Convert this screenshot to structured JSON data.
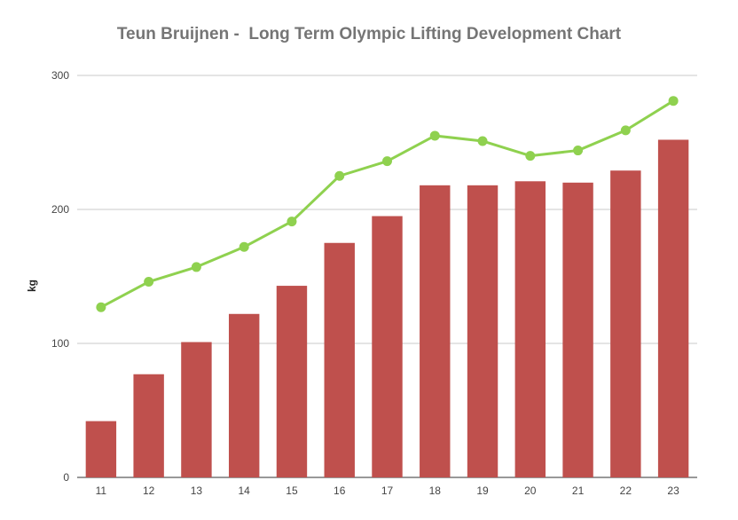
{
  "chart_data": {
    "type": "bar",
    "title": "Teun Bruijnen -  Long Term Olympic Lifting Development Chart",
    "xlabel": "",
    "ylabel": "kg",
    "ylim": [
      0,
      300
    ],
    "yticks": [
      0,
      100,
      200,
      300
    ],
    "grid": true,
    "legend": "none",
    "categories": [
      "11",
      "12",
      "13",
      "14",
      "15",
      "16",
      "17",
      "18",
      "19",
      "20",
      "21",
      "22",
      "23"
    ],
    "series": [
      {
        "type": "bar",
        "color": "#bf504d",
        "values": [
          42,
          77,
          101,
          122,
          143,
          175,
          195,
          218,
          218,
          221,
          220,
          229,
          252
        ]
      },
      {
        "type": "line",
        "color": "#8fd14f",
        "values": [
          127,
          146,
          157,
          172,
          191,
          225,
          236,
          255,
          251,
          240,
          244,
          259,
          281
        ]
      }
    ]
  }
}
